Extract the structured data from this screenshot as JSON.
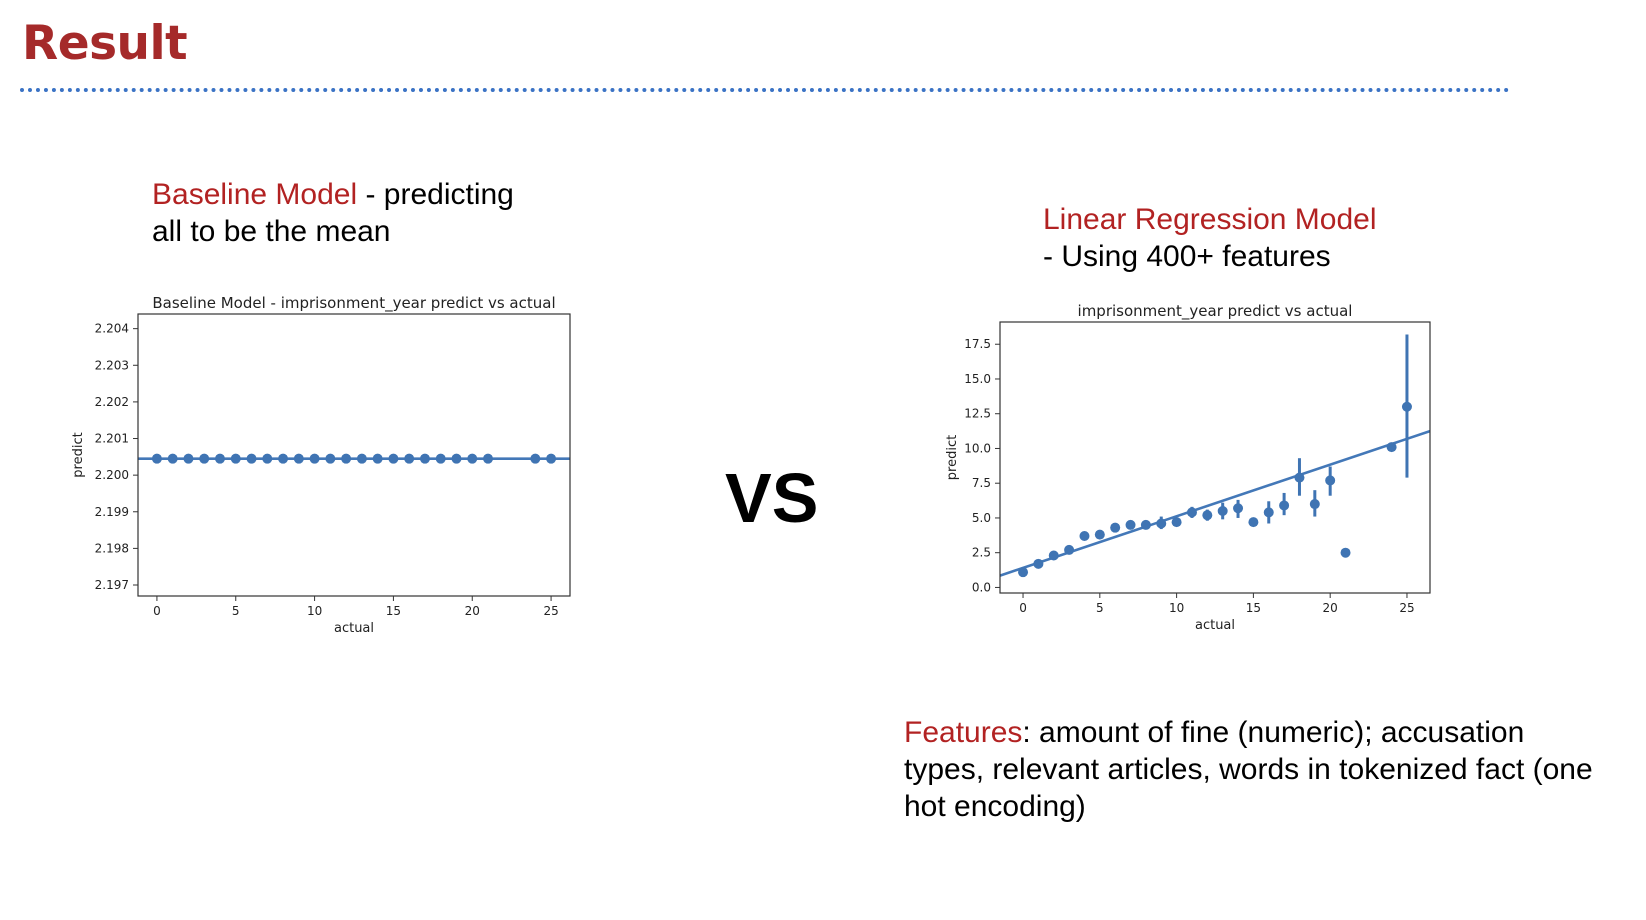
{
  "slide": {
    "title": "Result",
    "vs_label": "VS"
  },
  "captions": {
    "baseline": {
      "accent": "Baseline Model",
      "text": " - predicting all to be the mean"
    },
    "linreg": {
      "accent": "Linear Regression Model",
      "text": "- Using 400+ features"
    },
    "features": {
      "accent": "Features",
      "text": ": amount of fine (numeric); accusation types, relevant articles, words in tokenized fact (one hot encoding)"
    }
  },
  "colors": {
    "accent": "#b22222",
    "title": "#a52a2a",
    "series": "#3f74b3",
    "rule": "#3b73c5"
  },
  "chart_data": [
    {
      "id": "baseline",
      "type": "scatter",
      "title": "Baseline Model - imprisonment_year predict vs actual",
      "xlabel": "actual",
      "ylabel": "predict",
      "xlim": [
        -1.2,
        26.2
      ],
      "ylim": [
        2.1967,
        2.2044
      ],
      "xticks": [
        0,
        5,
        10,
        15,
        20,
        25
      ],
      "xtick_labels": [
        "0",
        "5",
        "10",
        "15",
        "20",
        "25"
      ],
      "yticks": [
        2.197,
        2.198,
        2.199,
        2.2,
        2.201,
        2.202,
        2.203,
        2.204
      ],
      "ytick_labels": [
        "2.197",
        "2.198",
        "2.199",
        "2.200",
        "2.201",
        "2.202",
        "2.203",
        "2.204"
      ],
      "grid": false,
      "points": [
        {
          "x": 0,
          "y": 2.20045
        },
        {
          "x": 1,
          "y": 2.20045
        },
        {
          "x": 2,
          "y": 2.20045
        },
        {
          "x": 3,
          "y": 2.20045
        },
        {
          "x": 4,
          "y": 2.20045
        },
        {
          "x": 5,
          "y": 2.20045
        },
        {
          "x": 6,
          "y": 2.20045
        },
        {
          "x": 7,
          "y": 2.20045
        },
        {
          "x": 8,
          "y": 2.20045
        },
        {
          "x": 9,
          "y": 2.20045
        },
        {
          "x": 10,
          "y": 2.20045
        },
        {
          "x": 11,
          "y": 2.20045
        },
        {
          "x": 12,
          "y": 2.20045
        },
        {
          "x": 13,
          "y": 2.20045
        },
        {
          "x": 14,
          "y": 2.20045
        },
        {
          "x": 15,
          "y": 2.20045
        },
        {
          "x": 16,
          "y": 2.20045
        },
        {
          "x": 17,
          "y": 2.20045
        },
        {
          "x": 18,
          "y": 2.20045
        },
        {
          "x": 19,
          "y": 2.20045
        },
        {
          "x": 20,
          "y": 2.20045
        },
        {
          "x": 21,
          "y": 2.20045
        },
        {
          "x": 24,
          "y": 2.20045
        },
        {
          "x": 25,
          "y": 2.20045
        }
      ],
      "fit": {
        "x": [
          -1.2,
          26.2
        ],
        "y": [
          2.20045,
          2.20045
        ]
      }
    },
    {
      "id": "linreg",
      "type": "scatter",
      "title": "imprisonment_year predict vs actual",
      "xlabel": "actual",
      "ylabel": "predict",
      "xlim": [
        -1.5,
        26.5
      ],
      "ylim": [
        -0.4,
        19.1
      ],
      "xticks": [
        0,
        5,
        10,
        15,
        20,
        25
      ],
      "xtick_labels": [
        "0",
        "5",
        "10",
        "15",
        "20",
        "25"
      ],
      "yticks": [
        0,
        2.5,
        5,
        7.5,
        10,
        12.5,
        15,
        17.5
      ],
      "ytick_labels": [
        "0.0",
        "2.5",
        "5.0",
        "7.5",
        "10.0",
        "12.5",
        "15.0",
        "17.5"
      ],
      "grid": false,
      "points": [
        {
          "x": 0,
          "y": 1.1
        },
        {
          "x": 1,
          "y": 1.7
        },
        {
          "x": 2,
          "y": 2.3
        },
        {
          "x": 3,
          "y": 2.7
        },
        {
          "x": 4,
          "y": 3.7
        },
        {
          "x": 5,
          "y": 3.8
        },
        {
          "x": 6,
          "y": 4.3
        },
        {
          "x": 7,
          "y": 4.5
        },
        {
          "x": 8,
          "y": 4.5
        },
        {
          "x": 9,
          "y": 4.6,
          "err": [
            4.2,
            5.1
          ]
        },
        {
          "x": 10,
          "y": 4.7
        },
        {
          "x": 11,
          "y": 5.4,
          "err": [
            5.0,
            5.8
          ]
        },
        {
          "x": 12,
          "y": 5.2,
          "err": [
            4.8,
            5.6
          ]
        },
        {
          "x": 13,
          "y": 5.5,
          "err": [
            4.9,
            6.1
          ]
        },
        {
          "x": 14,
          "y": 5.7,
          "err": [
            5.0,
            6.3
          ]
        },
        {
          "x": 15,
          "y": 4.7,
          "err": [
            4.5,
            4.9
          ]
        },
        {
          "x": 16,
          "y": 5.4,
          "err": [
            4.6,
            6.2
          ]
        },
        {
          "x": 17,
          "y": 5.9,
          "err": [
            5.2,
            6.8
          ]
        },
        {
          "x": 18,
          "y": 7.9,
          "err": [
            6.6,
            9.3
          ]
        },
        {
          "x": 19,
          "y": 6.0,
          "err": [
            5.1,
            7.0
          ]
        },
        {
          "x": 20,
          "y": 7.7,
          "err": [
            6.6,
            8.7
          ]
        },
        {
          "x": 21,
          "y": 2.5
        },
        {
          "x": 24,
          "y": 10.1
        },
        {
          "x": 25,
          "y": 13.0,
          "err": [
            7.9,
            18.2
          ]
        }
      ],
      "fit": {
        "x": [
          -1.5,
          26.5
        ],
        "y": [
          0.85,
          11.25
        ]
      }
    }
  ]
}
